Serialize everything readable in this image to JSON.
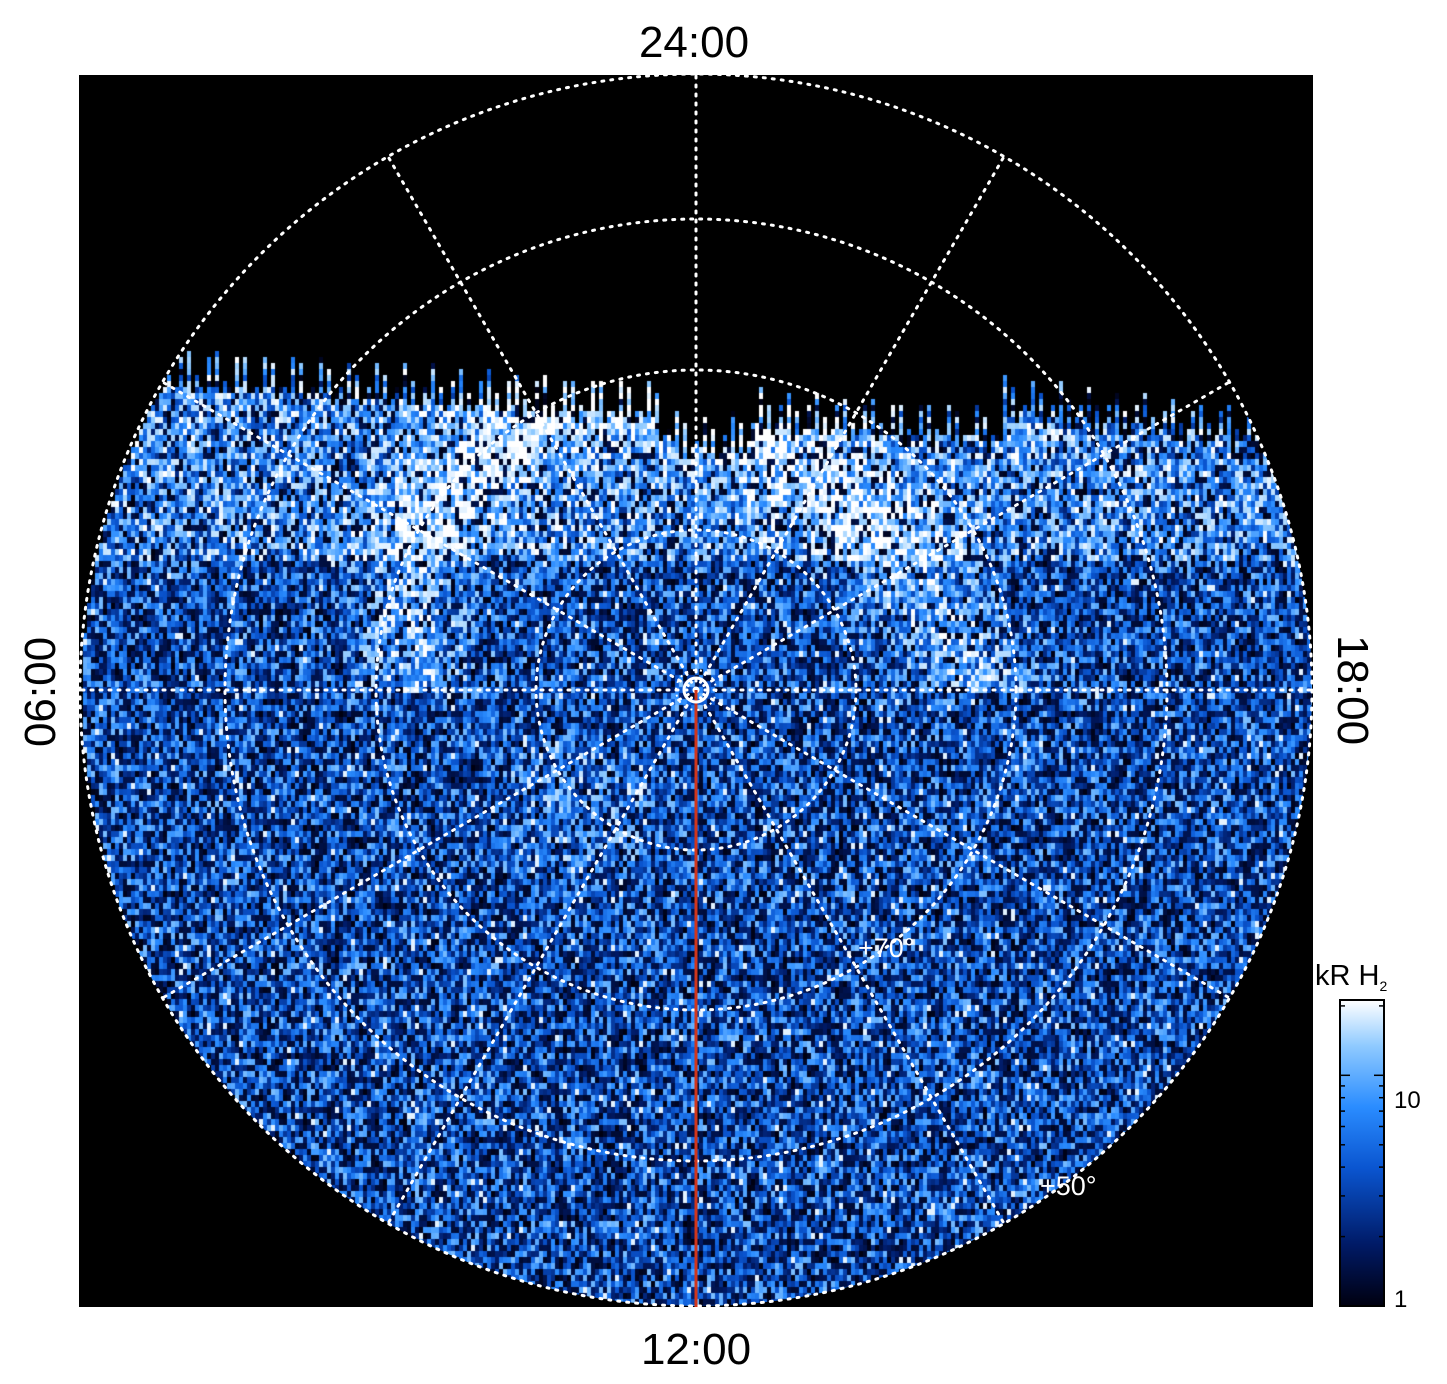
{
  "figure": {
    "projection": "polar",
    "local_time_labels": {
      "top": "24:00",
      "bottom": "12:00",
      "left": "06:00",
      "right": "18:00"
    },
    "latitude_labels": [
      "+70°",
      "+50°"
    ],
    "colorbar": {
      "title": "kR H",
      "title_subscript": "2",
      "tick_labels": [
        "10",
        "1"
      ],
      "scale": "log",
      "colors": [
        "#000010",
        "#001a66",
        "#0a55d0",
        "#2a8cff",
        "#8fcaff",
        "#ffffff"
      ]
    },
    "colors": {
      "background": "#000000",
      "grid": "#ffffff",
      "meridian_line": "#d0361c",
      "emission_low": "#000010",
      "emission_mid": "#1a7cf0",
      "emission_high": "#ffffff"
    }
  }
}
